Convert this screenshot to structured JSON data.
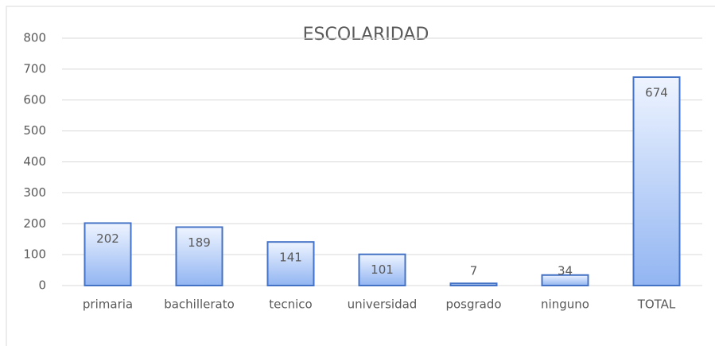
{
  "chart_data": {
    "type": "bar",
    "title": "ESCOLARIDAD",
    "categories": [
      "primaria",
      "bachillerato",
      "tecnico",
      "universidad",
      "posgrado",
      "ninguno",
      "TOTAL"
    ],
    "values": [
      202,
      189,
      141,
      101,
      7,
      34,
      674
    ],
    "color": "#4472c4",
    "ylim": [
      0,
      800
    ],
    "yticks": [
      0,
      100,
      200,
      300,
      400,
      500,
      600,
      700,
      800
    ],
    "grid": true
  }
}
